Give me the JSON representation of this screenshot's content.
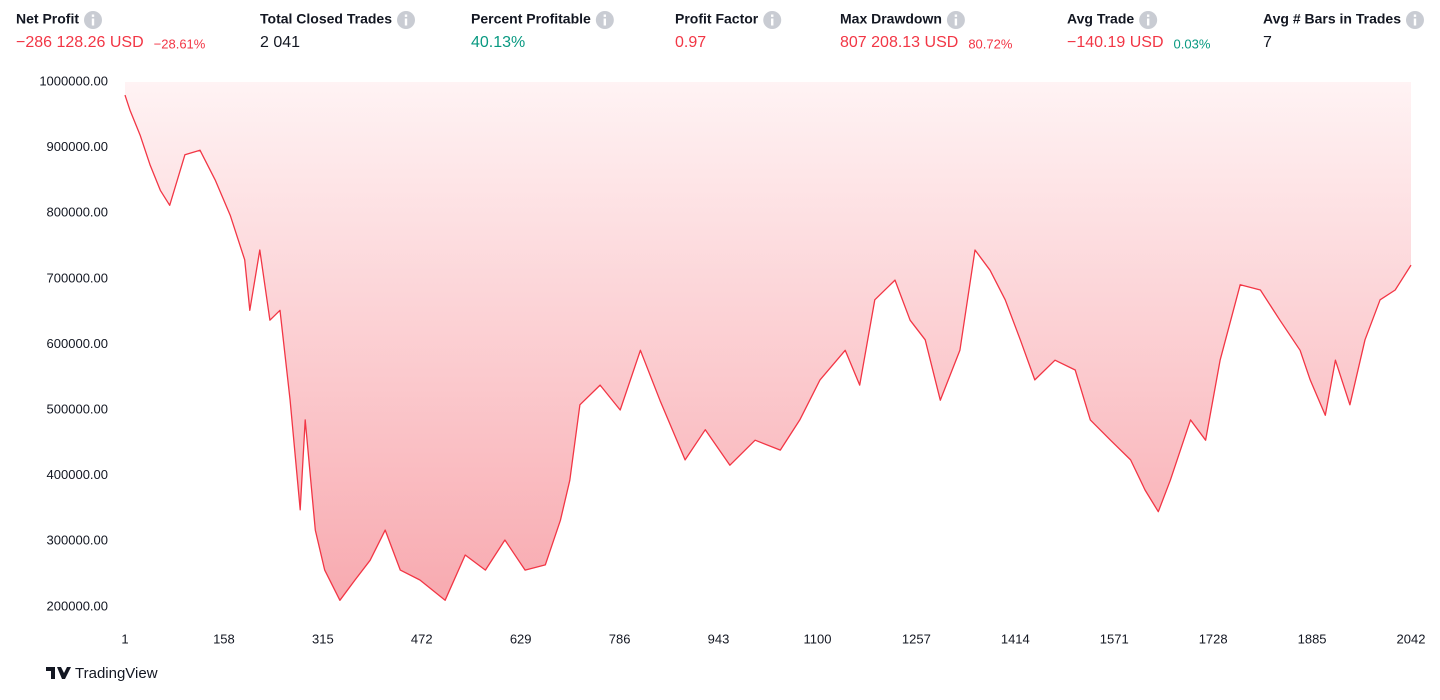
{
  "stats": [
    {
      "label": "Net Profit",
      "value": "−286 128.26 USD",
      "sub": "−28.61%",
      "color": "#f23645",
      "sub_color": "#f23645"
    },
    {
      "label": "Total Closed Trades",
      "value": "2 041",
      "color": "#131722"
    },
    {
      "label": "Percent Profitable",
      "value": "40.13%",
      "color": "#089981"
    },
    {
      "label": "Profit Factor",
      "value": "0.97",
      "color": "#f23645"
    },
    {
      "label": "Max Drawdown",
      "value": "807 208.13 USD",
      "sub": "80.72%",
      "color": "#f23645",
      "sub_color": "#f23645"
    },
    {
      "label": "Avg Trade",
      "value": "−140.19 USD",
      "sub": "0.03%",
      "color": "#f23645",
      "sub_color": "#089981"
    },
    {
      "label": "Avg # Bars in Trades",
      "value": "7",
      "color": "#131722"
    }
  ],
  "chart_data": {
    "type": "area",
    "color": "#f23645",
    "x": [
      1,
      9,
      25,
      41,
      57,
      72,
      96,
      120,
      144,
      168,
      191,
      199,
      215,
      231,
      247,
      263,
      279,
      287,
      303,
      318,
      342,
      366,
      390,
      414,
      438,
      469,
      509,
      541,
      573,
      604,
      636,
      668,
      692,
      707,
      723,
      755,
      787,
      819,
      850,
      890,
      922,
      961,
      1001,
      1041,
      1072,
      1104,
      1144,
      1167,
      1191,
      1223,
      1247,
      1271,
      1295,
      1326,
      1350,
      1374,
      1398,
      1422,
      1445,
      1477,
      1509,
      1533,
      1565,
      1597,
      1620,
      1641,
      1660,
      1692,
      1716,
      1739,
      1771,
      1803,
      1834,
      1866,
      1882,
      1906,
      1922,
      1945,
      1969,
      1993,
      2017,
      2042
    ],
    "values": [
      980000,
      957000,
      919000,
      873000,
      835000,
      812000,
      889000,
      896000,
      851000,
      797000,
      729000,
      652000,
      744000,
      637000,
      652000,
      515000,
      348000,
      485000,
      317000,
      256000,
      210000,
      241000,
      271000,
      317000,
      256000,
      241000,
      210000,
      279000,
      256000,
      302000,
      256000,
      264000,
      332000,
      393000,
      508000,
      538000,
      500000,
      591000,
      515000,
      424000,
      470000,
      416000,
      454000,
      439000,
      485000,
      546000,
      591000,
      538000,
      668000,
      698000,
      637000,
      607000,
      515000,
      591000,
      744000,
      713000,
      668000,
      607000,
      546000,
      576000,
      561000,
      485000,
      454000,
      424000,
      378000,
      345000,
      393000,
      485000,
      454000,
      576000,
      691000,
      683000,
      637000,
      591000,
      546000,
      492000,
      576000,
      508000,
      607000,
      668000,
      683000,
      721000
    ],
    "xlim": [
      1,
      2042
    ],
    "ylim": [
      180000,
      1000000
    ],
    "xticks": [
      1,
      158,
      315,
      472,
      629,
      786,
      943,
      1100,
      1257,
      1414,
      1571,
      1728,
      1885,
      2042
    ],
    "yticks": [
      {
        "value": 1000000,
        "label": "1000000.00"
      },
      {
        "value": 900000,
        "label": "900000.00"
      },
      {
        "value": 800000,
        "label": "800000.00"
      },
      {
        "value": 700000,
        "label": "700000.00"
      },
      {
        "value": 600000,
        "label": "600000.00"
      },
      {
        "value": 500000,
        "label": "500000.00"
      },
      {
        "value": 400000,
        "label": "400000.00"
      },
      {
        "value": 300000,
        "label": "300000.00"
      },
      {
        "value": 200000,
        "label": "200000.00"
      }
    ]
  },
  "brand": "TradingView"
}
